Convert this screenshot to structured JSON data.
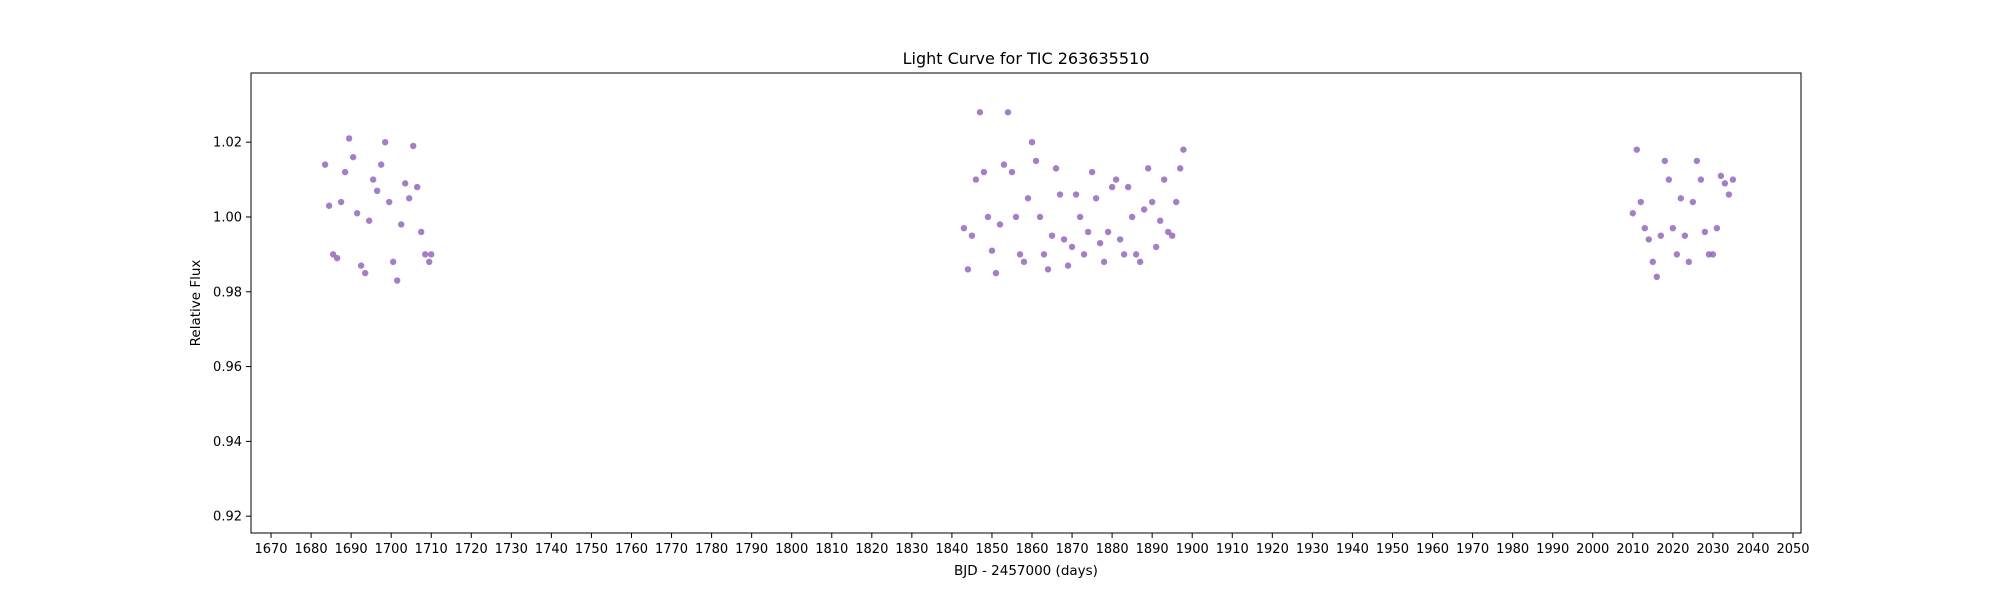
{
  "chart_data": {
    "type": "scatter",
    "title": "Light Curve for TIC 263635510",
    "xlabel": "BJD - 2457000 (days)",
    "ylabel": "Relative Flux",
    "xlim": [
      1665,
      2052
    ],
    "ylim": [
      0.9155,
      1.0385
    ],
    "xticks": [
      1670,
      1680,
      1690,
      1700,
      1710,
      1720,
      1730,
      1740,
      1750,
      1760,
      1770,
      1780,
      1790,
      1800,
      1810,
      1820,
      1830,
      1840,
      1850,
      1860,
      1870,
      1880,
      1890,
      1900,
      1910,
      1920,
      1930,
      1940,
      1950,
      1960,
      1970,
      1980,
      1990,
      2000,
      2010,
      2020,
      2030,
      2040,
      2050
    ],
    "xtick_labels": [
      "1670",
      "1680",
      "1690",
      "1700",
      "1710",
      "1720",
      "1730",
      "1740",
      "1750",
      "1760",
      "1770",
      "1780",
      "1790",
      "1800",
      "1810",
      "1820",
      "1830",
      "1840",
      "1850",
      "1860",
      "1870",
      "1880",
      "1890",
      "1900",
      "1910",
      "1920",
      "1930",
      "1940",
      "1950",
      "1960",
      "1970",
      "1980",
      "1990",
      "2000",
      "2010",
      "2020",
      "2030",
      "2040",
      "2050"
    ],
    "yticks": [
      0.92,
      0.94,
      0.96,
      0.98,
      1.0,
      1.02
    ],
    "ytick_labels": [
      "0.92",
      "0.94",
      "0.96",
      "0.98",
      "1.00",
      "1.02"
    ],
    "grid": false,
    "legend": "none",
    "marker_color": "#9467bd",
    "series": [
      {
        "x": [
          1683.5,
          1684.5,
          1685.5,
          1686.5,
          1687.5,
          1688.5,
          1689.5,
          1690.5,
          1691.5,
          1692.5,
          1693.5,
          1694.5,
          1695.5,
          1696.5,
          1697.5,
          1698.5,
          1699.5,
          1700.5,
          1701.5,
          1702.5,
          1703.5,
          1704.5,
          1705.5,
          1706.5,
          1707.5,
          1708.5,
          1709.5,
          1710.0
        ],
        "y": [
          1.014,
          1.003,
          0.99,
          0.989,
          1.004,
          1.012,
          1.021,
          1.016,
          1.001,
          0.987,
          0.985,
          0.999,
          1.01,
          1.007,
          1.014,
          1.02,
          1.004,
          0.988,
          0.983,
          0.998,
          1.009,
          1.005,
          1.019,
          1.008,
          0.996,
          0.99,
          0.988,
          0.99
        ]
      },
      {
        "x": [
          1843.0,
          1844.0,
          1845.0,
          1846.0,
          1847.0,
          1848.0,
          1849.0,
          1850.0,
          1851.0,
          1852.0,
          1853.0,
          1854.0,
          1855.0,
          1856.0,
          1857.0,
          1858.0,
          1859.0,
          1860.0,
          1861.0,
          1862.0,
          1863.0,
          1864.0,
          1865.0,
          1866.0,
          1867.0,
          1868.0,
          1869.0,
          1870.0,
          1871.0,
          1872.0,
          1873.0,
          1874.0,
          1875.0,
          1876.0,
          1877.0,
          1878.0,
          1879.0,
          1880.0,
          1881.0,
          1882.0,
          1883.0,
          1884.0,
          1885.0,
          1886.0,
          1887.0,
          1888.0,
          1889.0,
          1890.0,
          1891.0,
          1892.0,
          1893.0,
          1894.0,
          1895.0,
          1896.0,
          1897.0,
          1897.8
        ],
        "y": [
          0.997,
          0.986,
          0.995,
          1.01,
          1.028,
          1.012,
          1.0,
          0.991,
          0.985,
          0.998,
          1.014,
          1.028,
          1.012,
          1.0,
          0.99,
          0.988,
          1.005,
          1.02,
          1.015,
          1.0,
          0.99,
          0.986,
          0.995,
          1.013,
          1.006,
          0.994,
          0.987,
          0.992,
          1.006,
          1.0,
          0.99,
          0.996,
          1.012,
          1.005,
          0.993,
          0.988,
          0.996,
          1.008,
          1.01,
          0.994,
          0.99,
          1.008,
          1.0,
          0.99,
          0.988,
          1.002,
          1.013,
          1.004,
          0.992,
          0.999,
          1.01,
          0.996,
          0.995,
          1.004,
          1.013,
          1.018
        ]
      },
      {
        "x": [
          2010.0,
          2011.0,
          2012.0,
          2013.0,
          2014.0,
          2015.0,
          2016.0,
          2017.0,
          2018.0,
          2019.0,
          2020.0,
          2021.0,
          2022.0,
          2023.0,
          2024.0,
          2025.0,
          2026.0,
          2027.0,
          2028.0,
          2029.0,
          2030.0,
          2031.0,
          2032.0,
          2033.0,
          2034.0,
          2035.0
        ],
        "y": [
          1.001,
          1.018,
          1.004,
          0.997,
          0.994,
          0.988,
          0.984,
          0.995,
          1.015,
          1.01,
          0.997,
          0.99,
          1.005,
          0.995,
          0.988,
          1.004,
          1.015,
          1.01,
          0.996,
          0.99,
          0.99,
          0.997,
          1.011,
          1.009,
          1.006,
          1.01
        ]
      }
    ]
  }
}
